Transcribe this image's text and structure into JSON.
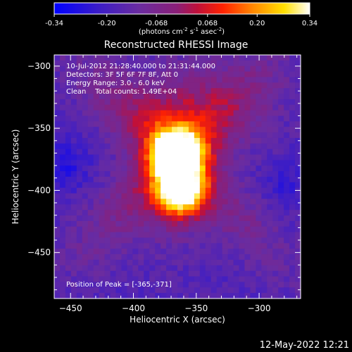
{
  "colorbar": {
    "ticks": [
      "-0.34",
      "-0.20",
      "-0.068",
      "0.068",
      "0.20",
      "0.34"
    ],
    "tick_values": [
      -0.34,
      -0.2,
      -0.068,
      0.068,
      0.2,
      0.34
    ],
    "range": [
      -0.34,
      0.34
    ],
    "units": "(photons cm",
    "units_parts": [
      "(photons cm",
      "-2",
      " s",
      "-1",
      " asec",
      "-2",
      ")"
    ],
    "colormap": "blue-purple-red-yellow-white"
  },
  "chart_data": {
    "type": "heatmap",
    "title": "Reconstructed RHESSI Image",
    "xlabel": "Heliocentric X (arcsec)",
    "ylabel": "Heliocentric Y (arcsec)",
    "xlim": [
      -463,
      -267
    ],
    "ylim": [
      -487,
      -291
    ],
    "xticks": [
      -450,
      -400,
      -350,
      -300
    ],
    "yticks": [
      -300,
      -350,
      -400,
      -450
    ],
    "xtick_labels": [
      "−450",
      "−400",
      "−350",
      "−300"
    ],
    "ytick_labels": [
      "−300",
      "−350",
      "−400",
      "−450"
    ],
    "info_lines": [
      "10-Jul-2012 21:28:40.000 to 21:31:44.000",
      "Detectors: 3F 5F 6F 7F 8F, Att 0",
      "Energy Range: 3.0 - 6.0 keV",
      "Clean    Total counts: 1.49E+04"
    ],
    "peak_label": "Position of Peak = [-365,-371]",
    "peak": [
      -365,
      -371
    ],
    "sources": [
      {
        "x": -365,
        "y": -371,
        "peak": 0.34
      },
      {
        "x": -362,
        "y": -402,
        "peak": 0.31
      }
    ]
  },
  "footer": {
    "timestamp": "12-May-2022 12:21"
  },
  "colors": {
    "background": "#000000",
    "text": "#ffffff"
  }
}
